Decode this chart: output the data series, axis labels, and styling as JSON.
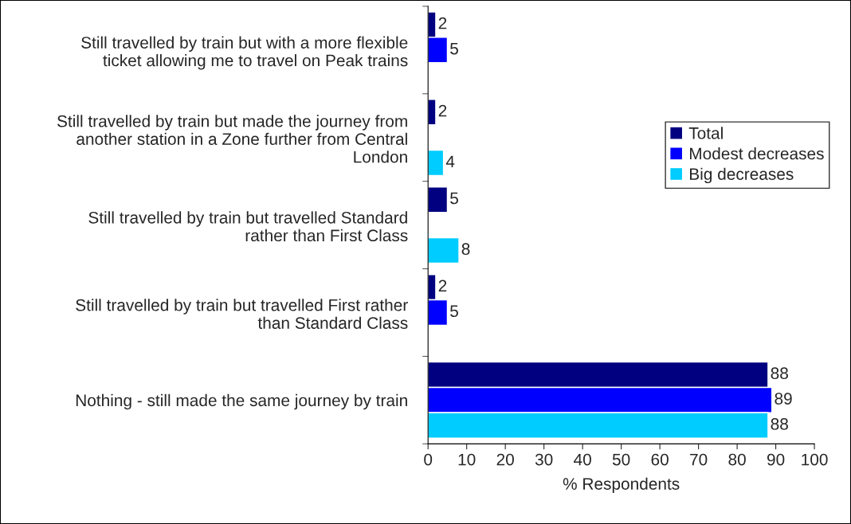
{
  "chart_data": {
    "type": "bar",
    "orientation": "horizontal",
    "categories": [
      "Still travelled by train but with a more flexible\nticket allowing me to travel on Peak trains",
      "Still travelled by train but made the journey from\nanother station in a Zone further from Central\nLondon",
      "Still travelled by train but travelled Standard\nrather than First Class",
      "Still travelled by train but travelled First rather\nthan Standard Class",
      "Nothing - still made the same journey by train"
    ],
    "series": [
      {
        "name": "Total",
        "color": "#000080",
        "values": [
          2,
          2,
          5,
          2,
          88
        ]
      },
      {
        "name": "Modest decreases",
        "color": "#0000ff",
        "values": [
          5,
          null,
          null,
          5,
          89
        ]
      },
      {
        "name": "Big decreases",
        "color": "#00ccff",
        "values": [
          null,
          4,
          8,
          null,
          88
        ]
      }
    ],
    "xlabel": "% Respondents",
    "xlim": [
      0,
      100
    ],
    "xticks": [
      0,
      10,
      20,
      30,
      40,
      50,
      60,
      70,
      80,
      90,
      100
    ],
    "data_labels": true,
    "grid": false,
    "legend": "right"
  }
}
